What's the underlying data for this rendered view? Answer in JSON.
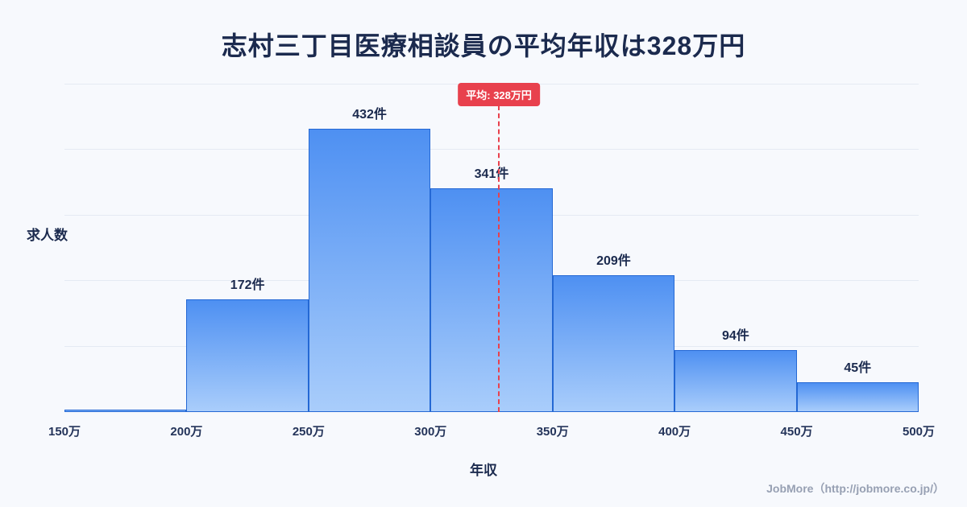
{
  "title": "志村三丁目医療相談員の平均年収は328万円",
  "chart_data": {
    "type": "bar",
    "title": "志村三丁目医療相談員の平均年収は328万円",
    "xlabel": "年収",
    "ylabel": "求人数",
    "categories": [
      "150万",
      "200万",
      "250万",
      "300万",
      "350万",
      "400万",
      "450万",
      "500万"
    ],
    "bins": [
      {
        "range": "150万-200万",
        "value": 4,
        "label": ""
      },
      {
        "range": "200万-250万",
        "value": 172,
        "label": "172件"
      },
      {
        "range": "250万-300万",
        "value": 432,
        "label": "432件"
      },
      {
        "range": "300万-350万",
        "value": 341,
        "label": "341件"
      },
      {
        "range": "350万-400万",
        "value": 209,
        "label": "209件"
      },
      {
        "range": "400万-450万",
        "value": 94,
        "label": "94件"
      },
      {
        "range": "450万-500万",
        "value": 45,
        "label": "45件"
      }
    ],
    "ylim": [
      0,
      500
    ],
    "gridlines_every": 100,
    "grid": "on",
    "average": {
      "value": 328,
      "label": "平均: 328万円",
      "x_range": [
        150,
        500
      ]
    },
    "colors": {
      "background": "#f7f9fd",
      "title_text": "#1b2a4e",
      "grid": "#e5eaf3",
      "bar_top": "#4e90f2",
      "bar_bottom": "#a9cdfb",
      "bar_border": "#2468d4",
      "average_line": "#e8414d",
      "badge_bg": "#e8414d",
      "badge_text": "#ffffff"
    }
  },
  "footer": {
    "text": "JobMore（http://jobmore.co.jp/）"
  }
}
